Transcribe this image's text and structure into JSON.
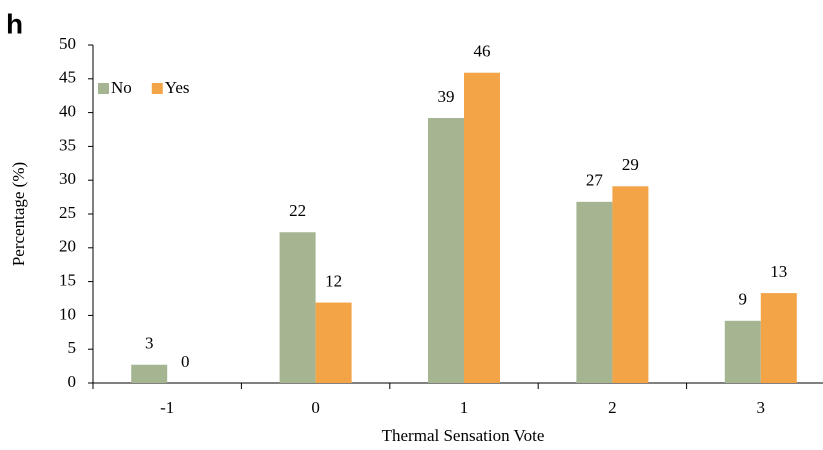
{
  "panel_label": "h",
  "chart_data": {
    "type": "bar",
    "x_label": "Thermal Sensation Vote",
    "y_label": "Percentage (%)",
    "categories": [
      "-1",
      "0",
      "1",
      "2",
      "3"
    ],
    "series": [
      {
        "name": "No",
        "color": "#a5b592",
        "values": [
          2.7,
          22.3,
          39.2,
          26.8,
          9.2
        ],
        "value_labels": [
          "3",
          "22",
          "39",
          "27",
          "9"
        ]
      },
      {
        "name": "Yes",
        "color": "#f3a447",
        "values": [
          0,
          11.9,
          45.9,
          29.1,
          13.3
        ],
        "value_labels": [
          "0",
          "12",
          "46",
          "29",
          "13"
        ]
      }
    ],
    "ylim": [
      0,
      50
    ],
    "yticks": [
      0,
      5,
      10,
      15,
      20,
      25,
      30,
      35,
      40,
      45,
      50
    ],
    "grid": false,
    "legend": "top-left"
  }
}
